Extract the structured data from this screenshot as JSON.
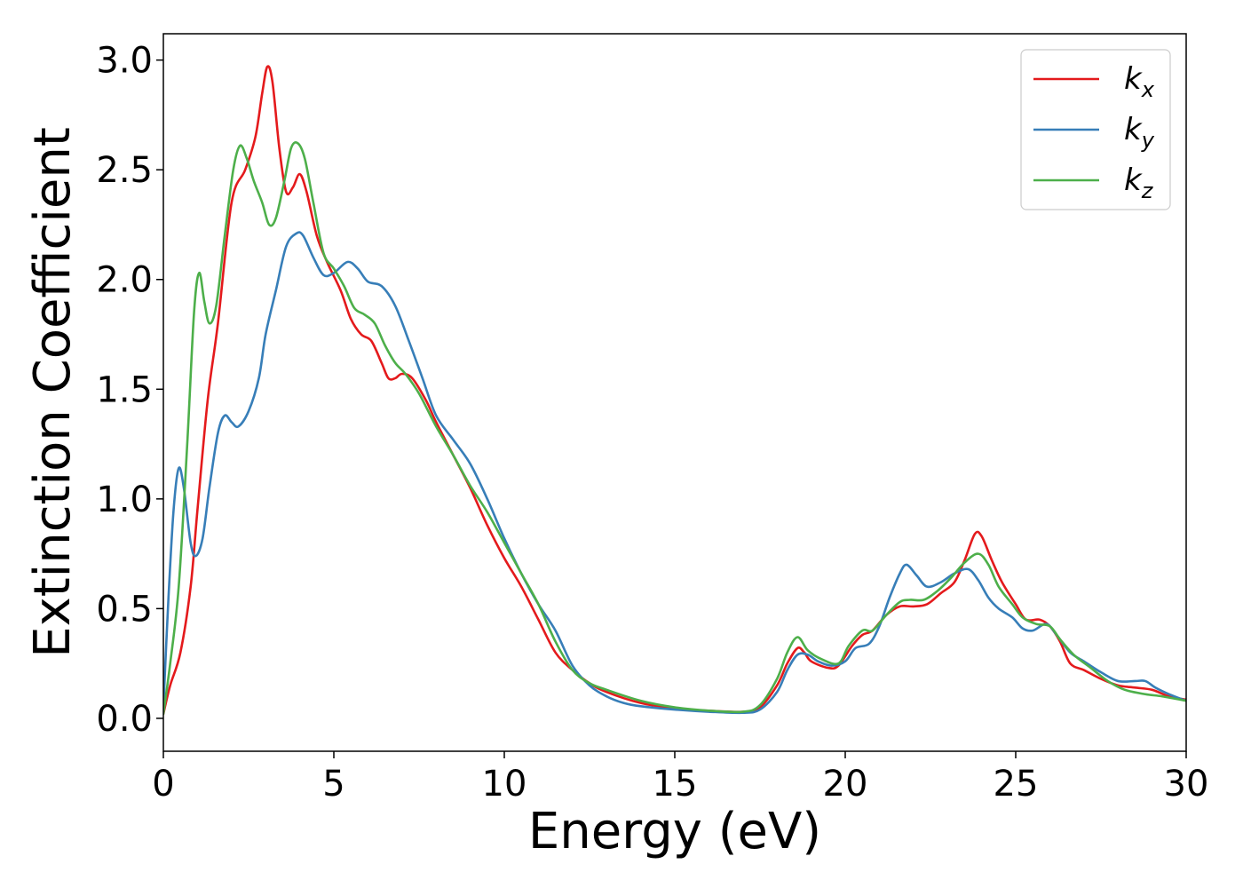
{
  "chart_data": {
    "type": "line",
    "title": "",
    "xlabel": "Energy (eV)",
    "ylabel": "Extinction Coefficient",
    "xlim": [
      0,
      30
    ],
    "ylim": [
      -0.15,
      3.12
    ],
    "xticks": [
      0,
      5,
      10,
      15,
      20,
      25,
      30
    ],
    "xtick_labels": [
      "0",
      "5",
      "10",
      "15",
      "20",
      "25",
      "30"
    ],
    "yticks": [
      0.0,
      0.5,
      1.0,
      1.5,
      2.0,
      2.5,
      3.0
    ],
    "ytick_labels": [
      "0.0",
      "0.5",
      "1.0",
      "1.5",
      "2.0",
      "2.5",
      "3.0"
    ],
    "grid": false,
    "legend_position": "top-right",
    "series": [
      {
        "name": "k_x",
        "legend_base": "k",
        "legend_sub": "x",
        "color": "#e41a1c",
        "points": [
          [
            0,
            0.02
          ],
          [
            0.2,
            0.15
          ],
          [
            0.5,
            0.3
          ],
          [
            0.8,
            0.6
          ],
          [
            1.0,
            0.95
          ],
          [
            1.3,
            1.45
          ],
          [
            1.6,
            1.8
          ],
          [
            2.0,
            2.35
          ],
          [
            2.4,
            2.5
          ],
          [
            2.7,
            2.65
          ],
          [
            2.9,
            2.85
          ],
          [
            3.05,
            2.97
          ],
          [
            3.2,
            2.9
          ],
          [
            3.4,
            2.6
          ],
          [
            3.6,
            2.4
          ],
          [
            3.8,
            2.42
          ],
          [
            4.0,
            2.48
          ],
          [
            4.2,
            2.4
          ],
          [
            4.5,
            2.2
          ],
          [
            4.8,
            2.08
          ],
          [
            5.2,
            1.95
          ],
          [
            5.5,
            1.82
          ],
          [
            5.8,
            1.75
          ],
          [
            6.1,
            1.72
          ],
          [
            6.4,
            1.62
          ],
          [
            6.6,
            1.55
          ],
          [
            6.8,
            1.55
          ],
          [
            7.0,
            1.57
          ],
          [
            7.3,
            1.55
          ],
          [
            7.7,
            1.45
          ],
          [
            8.0,
            1.35
          ],
          [
            8.5,
            1.2
          ],
          [
            9.0,
            1.05
          ],
          [
            9.5,
            0.88
          ],
          [
            10.0,
            0.73
          ],
          [
            10.5,
            0.6
          ],
          [
            11.0,
            0.45
          ],
          [
            11.5,
            0.3
          ],
          [
            12.0,
            0.22
          ],
          [
            12.5,
            0.16
          ],
          [
            13.0,
            0.12
          ],
          [
            14.0,
            0.07
          ],
          [
            15.0,
            0.045
          ],
          [
            16.0,
            0.035
          ],
          [
            17.0,
            0.03
          ],
          [
            17.5,
            0.05
          ],
          [
            18.0,
            0.15
          ],
          [
            18.3,
            0.25
          ],
          [
            18.6,
            0.32
          ],
          [
            18.8,
            0.3
          ],
          [
            19.0,
            0.26
          ],
          [
            19.5,
            0.23
          ],
          [
            19.8,
            0.24
          ],
          [
            20.2,
            0.33
          ],
          [
            20.5,
            0.38
          ],
          [
            20.8,
            0.4
          ],
          [
            21.2,
            0.47
          ],
          [
            21.6,
            0.51
          ],
          [
            22.0,
            0.51
          ],
          [
            22.4,
            0.52
          ],
          [
            22.8,
            0.57
          ],
          [
            23.2,
            0.62
          ],
          [
            23.5,
            0.72
          ],
          [
            23.8,
            0.84
          ],
          [
            24.0,
            0.83
          ],
          [
            24.3,
            0.72
          ],
          [
            24.6,
            0.62
          ],
          [
            25.0,
            0.52
          ],
          [
            25.3,
            0.45
          ],
          [
            25.7,
            0.45
          ],
          [
            26.0,
            0.42
          ],
          [
            26.3,
            0.35
          ],
          [
            26.6,
            0.25
          ],
          [
            27.0,
            0.22
          ],
          [
            27.5,
            0.18
          ],
          [
            28.0,
            0.15
          ],
          [
            28.5,
            0.14
          ],
          [
            29.0,
            0.13
          ],
          [
            29.5,
            0.1
          ],
          [
            30.0,
            0.085
          ]
        ]
      },
      {
        "name": "k_y",
        "legend_base": "k",
        "legend_sub": "y",
        "color": "#377eb8",
        "points": [
          [
            0,
            0.05
          ],
          [
            0.15,
            0.55
          ],
          [
            0.3,
            0.95
          ],
          [
            0.45,
            1.14
          ],
          [
            0.6,
            1.05
          ],
          [
            0.8,
            0.8
          ],
          [
            0.95,
            0.74
          ],
          [
            1.15,
            0.82
          ],
          [
            1.35,
            1.05
          ],
          [
            1.6,
            1.3
          ],
          [
            1.8,
            1.38
          ],
          [
            2.0,
            1.35
          ],
          [
            2.2,
            1.33
          ],
          [
            2.5,
            1.4
          ],
          [
            2.8,
            1.55
          ],
          [
            3.0,
            1.75
          ],
          [
            3.3,
            1.95
          ],
          [
            3.6,
            2.15
          ],
          [
            3.9,
            2.21
          ],
          [
            4.1,
            2.2
          ],
          [
            4.4,
            2.1
          ],
          [
            4.7,
            2.02
          ],
          [
            5.0,
            2.03
          ],
          [
            5.4,
            2.08
          ],
          [
            5.7,
            2.05
          ],
          [
            6.0,
            1.99
          ],
          [
            6.4,
            1.97
          ],
          [
            6.8,
            1.88
          ],
          [
            7.2,
            1.72
          ],
          [
            7.6,
            1.55
          ],
          [
            8.0,
            1.38
          ],
          [
            8.5,
            1.27
          ],
          [
            9.0,
            1.16
          ],
          [
            9.5,
            1.0
          ],
          [
            10.0,
            0.82
          ],
          [
            10.5,
            0.66
          ],
          [
            11.0,
            0.52
          ],
          [
            11.5,
            0.4
          ],
          [
            12.0,
            0.24
          ],
          [
            12.5,
            0.15
          ],
          [
            13.0,
            0.1
          ],
          [
            13.5,
            0.07
          ],
          [
            14.0,
            0.055
          ],
          [
            15.0,
            0.04
          ],
          [
            16.0,
            0.03
          ],
          [
            17.0,
            0.025
          ],
          [
            17.5,
            0.04
          ],
          [
            18.0,
            0.12
          ],
          [
            18.3,
            0.22
          ],
          [
            18.6,
            0.29
          ],
          [
            18.9,
            0.29
          ],
          [
            19.2,
            0.26
          ],
          [
            19.6,
            0.24
          ],
          [
            20.0,
            0.26
          ],
          [
            20.3,
            0.32
          ],
          [
            20.7,
            0.34
          ],
          [
            21.0,
            0.42
          ],
          [
            21.3,
            0.55
          ],
          [
            21.6,
            0.66
          ],
          [
            21.8,
            0.7
          ],
          [
            22.1,
            0.65
          ],
          [
            22.4,
            0.6
          ],
          [
            22.8,
            0.62
          ],
          [
            23.2,
            0.66
          ],
          [
            23.6,
            0.68
          ],
          [
            23.9,
            0.63
          ],
          [
            24.2,
            0.55
          ],
          [
            24.5,
            0.5
          ],
          [
            24.9,
            0.46
          ],
          [
            25.2,
            0.41
          ],
          [
            25.5,
            0.4
          ],
          [
            25.9,
            0.43
          ],
          [
            26.2,
            0.38
          ],
          [
            26.6,
            0.3
          ],
          [
            27.0,
            0.26
          ],
          [
            27.5,
            0.21
          ],
          [
            28.0,
            0.17
          ],
          [
            28.5,
            0.17
          ],
          [
            28.8,
            0.17
          ],
          [
            29.1,
            0.14
          ],
          [
            29.5,
            0.11
          ],
          [
            30.0,
            0.08
          ]
        ]
      },
      {
        "name": "k_z",
        "legend_base": "k",
        "legend_sub": "z",
        "color": "#4daf4a",
        "points": [
          [
            0,
            0.02
          ],
          [
            0.2,
            0.25
          ],
          [
            0.45,
            0.6
          ],
          [
            0.7,
            1.25
          ],
          [
            0.9,
            1.85
          ],
          [
            1.05,
            2.03
          ],
          [
            1.2,
            1.9
          ],
          [
            1.35,
            1.8
          ],
          [
            1.55,
            1.88
          ],
          [
            1.8,
            2.2
          ],
          [
            2.05,
            2.5
          ],
          [
            2.25,
            2.61
          ],
          [
            2.45,
            2.55
          ],
          [
            2.65,
            2.45
          ],
          [
            2.9,
            2.35
          ],
          [
            3.1,
            2.25
          ],
          [
            3.3,
            2.28
          ],
          [
            3.55,
            2.45
          ],
          [
            3.75,
            2.6
          ],
          [
            3.95,
            2.62
          ],
          [
            4.15,
            2.55
          ],
          [
            4.4,
            2.35
          ],
          [
            4.7,
            2.12
          ],
          [
            5.0,
            2.05
          ],
          [
            5.3,
            1.97
          ],
          [
            5.6,
            1.87
          ],
          [
            5.9,
            1.84
          ],
          [
            6.2,
            1.8
          ],
          [
            6.5,
            1.7
          ],
          [
            6.8,
            1.62
          ],
          [
            7.1,
            1.57
          ],
          [
            7.5,
            1.48
          ],
          [
            8.0,
            1.33
          ],
          [
            8.5,
            1.2
          ],
          [
            9.0,
            1.06
          ],
          [
            9.5,
            0.94
          ],
          [
            10.0,
            0.8
          ],
          [
            10.5,
            0.66
          ],
          [
            11.0,
            0.52
          ],
          [
            11.5,
            0.35
          ],
          [
            12.0,
            0.22
          ],
          [
            12.5,
            0.16
          ],
          [
            13.0,
            0.13
          ],
          [
            14.0,
            0.08
          ],
          [
            15.0,
            0.05
          ],
          [
            16.0,
            0.035
          ],
          [
            17.0,
            0.03
          ],
          [
            17.5,
            0.06
          ],
          [
            18.0,
            0.18
          ],
          [
            18.3,
            0.3
          ],
          [
            18.6,
            0.37
          ],
          [
            18.9,
            0.31
          ],
          [
            19.3,
            0.27
          ],
          [
            19.8,
            0.25
          ],
          [
            20.1,
            0.33
          ],
          [
            20.5,
            0.4
          ],
          [
            20.8,
            0.4
          ],
          [
            21.2,
            0.47
          ],
          [
            21.6,
            0.53
          ],
          [
            21.9,
            0.54
          ],
          [
            22.3,
            0.54
          ],
          [
            22.7,
            0.58
          ],
          [
            23.1,
            0.64
          ],
          [
            23.5,
            0.71
          ],
          [
            23.9,
            0.75
          ],
          [
            24.2,
            0.7
          ],
          [
            24.5,
            0.6
          ],
          [
            24.9,
            0.52
          ],
          [
            25.2,
            0.46
          ],
          [
            25.6,
            0.43
          ],
          [
            26.0,
            0.42
          ],
          [
            26.3,
            0.36
          ],
          [
            26.7,
            0.29
          ],
          [
            27.2,
            0.23
          ],
          [
            27.7,
            0.17
          ],
          [
            28.2,
            0.13
          ],
          [
            28.8,
            0.11
          ],
          [
            29.3,
            0.1
          ],
          [
            30.0,
            0.08
          ]
        ]
      }
    ]
  }
}
